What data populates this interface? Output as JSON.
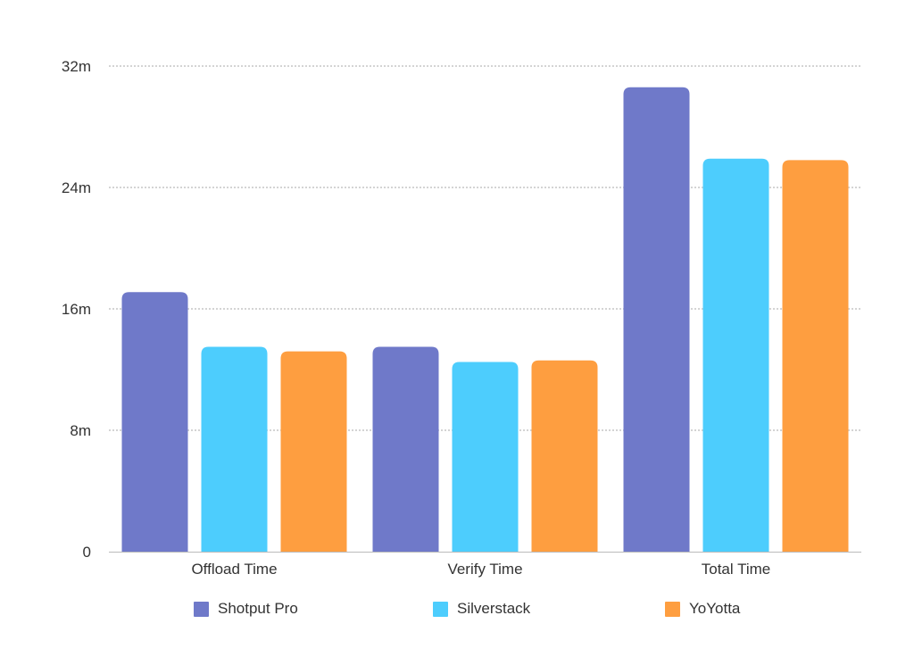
{
  "chart_data": {
    "type": "bar",
    "categories": [
      "Offload Time",
      "Verify Time",
      "Total Time"
    ],
    "series": [
      {
        "name": "Shotput Pro",
        "color": "#6f79c9",
        "values": [
          17.1,
          13.5,
          30.6
        ]
      },
      {
        "name": "Silverstack",
        "color": "#4dcdfd",
        "values": [
          13.5,
          12.5,
          25.9
        ]
      },
      {
        "name": "YoYotta",
        "color": "#fe9e40",
        "values": [
          13.2,
          12.6,
          25.8
        ]
      }
    ],
    "yticks": [
      "0",
      "8m",
      "16m",
      "24m",
      "32m"
    ],
    "ytick_values": [
      0,
      8,
      16,
      24,
      32
    ],
    "ylim": [
      0,
      32
    ],
    "unit": "minutes",
    "grid": "horizontal dotted",
    "legend": "bottom"
  }
}
